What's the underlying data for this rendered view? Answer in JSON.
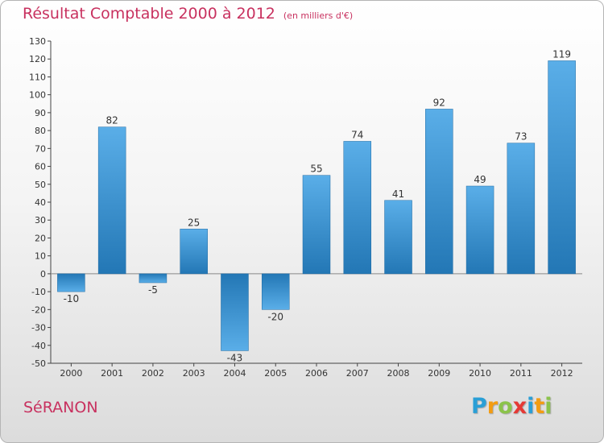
{
  "header": {
    "title": "Résultat Comptable 2000 à 2012",
    "subtitle": "(en milliers d'€)"
  },
  "footer": {
    "commune": "SéRANON",
    "logo_text": "Proxiti",
    "logo_letters": [
      {
        "ch": "P",
        "color": "#2a9fd6"
      },
      {
        "ch": "r",
        "color": "#f39c12"
      },
      {
        "ch": "o",
        "color": "#8bc34a"
      },
      {
        "ch": "x",
        "color": "#e53935"
      },
      {
        "ch": "i",
        "color": "#2a9fd6"
      },
      {
        "ch": "t",
        "color": "#f39c12"
      },
      {
        "ch": "i",
        "color": "#8bc34a"
      }
    ]
  },
  "colors": {
    "bar_light": "#5aaee8",
    "bar_dark": "#2377b5",
    "title": "#c8315f"
  },
  "chart_data": {
    "type": "bar",
    "title": "Résultat Comptable 2000 à 2012",
    "subtitle": "(en milliers d'€)",
    "categories": [
      "2000",
      "2001",
      "2002",
      "2003",
      "2004",
      "2005",
      "2006",
      "2007",
      "2008",
      "2009",
      "2010",
      "2011",
      "2012"
    ],
    "values": [
      -10,
      82,
      -5,
      25,
      -43,
      -20,
      55,
      74,
      41,
      92,
      49,
      73,
      119
    ],
    "ylim": [
      -50,
      130
    ],
    "yticks": [
      -50,
      -40,
      -30,
      -20,
      -10,
      0,
      10,
      20,
      30,
      40,
      50,
      60,
      70,
      80,
      90,
      100,
      110,
      120,
      130
    ],
    "grid": false,
    "legend": "none"
  }
}
